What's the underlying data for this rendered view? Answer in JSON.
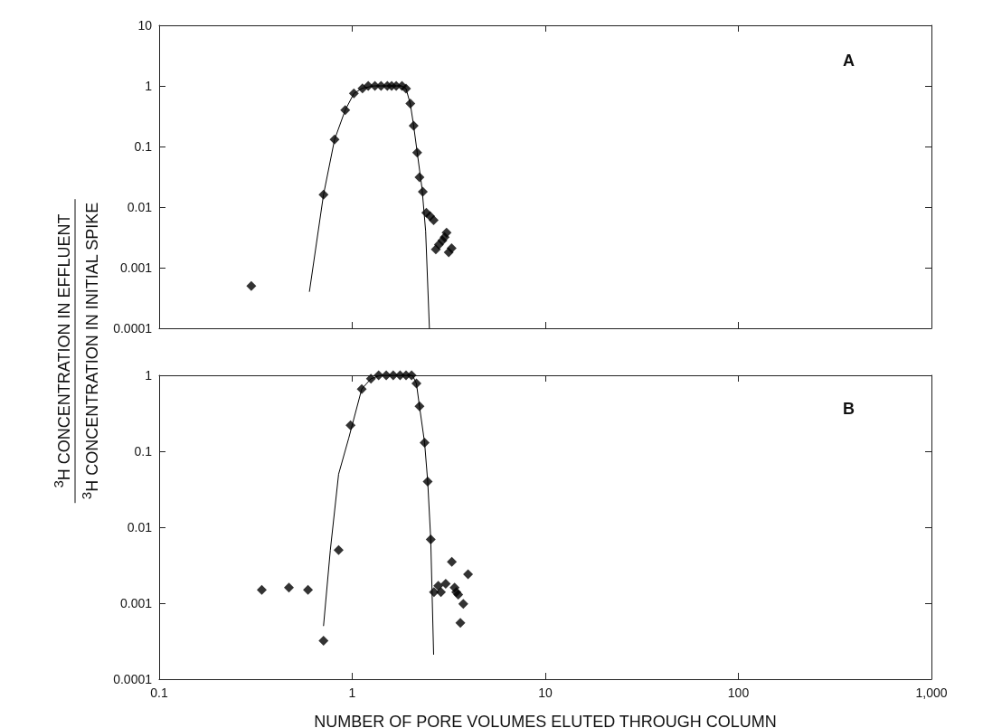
{
  "chart_data": [
    {
      "type": "scatter",
      "ylabel": "$^{3}$H CONCENTRATION IN EFFLUENT\n$^{3}$H CONCENTRATION IN INITIAL SPIKE",
      "annotations": [
        "A"
      ],
      "log": "xy",
      "grid": false,
      "tick_labels": "y",
      "xlim": [
        0.1,
        1000
      ],
      "xticks": [
        0.1,
        1,
        10,
        100,
        1000
      ],
      "ylim": [
        0.0001,
        10
      ],
      "yticks": [
        0.0001,
        0.001,
        0.01,
        0.1,
        1,
        10
      ],
      "series": [
        {
          "marker": "diamond",
          "color": "#000000",
          "x": [
            0.3,
            0.71,
            0.81,
            0.92,
            1.02,
            1.13,
            1.21,
            1.31,
            1.41,
            1.52,
            1.6,
            1.69,
            1.81,
            1.9,
            2.0,
            2.08,
            2.17,
            2.23,
            2.32,
            2.42,
            2.53,
            2.64,
            2.71,
            2.81,
            2.93,
            3.01,
            3.08,
            3.16,
            3.27
          ],
          "values": [
            0.0005,
            0.016,
            0.13,
            0.4,
            0.75,
            0.91,
            1.0,
            1.0,
            1.0,
            1.0,
            1.0,
            1.0,
            1.0,
            0.9,
            0.51,
            0.22,
            0.079,
            0.031,
            0.018,
            0.0081,
            0.0071,
            0.0061,
            0.002,
            0.0024,
            0.0028,
            0.0032,
            0.0038,
            0.0018,
            0.0021
          ]
        },
        {
          "type": "line",
          "marker": "none",
          "color": "#000000",
          "x": [
            0.6,
            0.71,
            0.81,
            0.92,
            1.02,
            1.13,
            1.3,
            1.8,
            1.9,
            2.0,
            2.08,
            2.17,
            2.3,
            2.4,
            2.51
          ],
          "values": [
            0.0004,
            0.016,
            0.13,
            0.4,
            0.75,
            0.92,
            1.0,
            1.0,
            0.9,
            0.5,
            0.22,
            0.08,
            0.02,
            0.004,
            0.0001
          ]
        }
      ]
    },
    {
      "type": "scatter",
      "xlabel": "NUMBER OF PORE VOLUMES ELUTED THROUGH COLUMN",
      "annotations": [
        "B"
      ],
      "log": "xy",
      "grid": false,
      "xlim": [
        0.1,
        1000
      ],
      "xticks": [
        0.1,
        1,
        10,
        100,
        {
          "value": 1000,
          "label": "1,000"
        }
      ],
      "ylim": [
        0.0001,
        1
      ],
      "yticks": [
        0.0001,
        0.001,
        0.01,
        0.1,
        1
      ],
      "series": [
        {
          "marker": "diamond",
          "color": "#000000",
          "x": [
            0.34,
            0.47,
            0.59,
            0.71,
            0.85,
            0.98,
            1.12,
            1.25,
            1.37,
            1.5,
            1.63,
            1.77,
            1.9,
            2.03,
            2.15,
            2.23,
            2.37,
            2.46,
            2.55,
            2.65,
            2.79,
            2.88,
            3.05,
            3.28,
            3.39,
            3.46,
            3.54,
            3.63,
            3.76,
            3.98
          ],
          "values": [
            0.0015,
            0.0016,
            0.0015,
            0.00032,
            0.005,
            0.22,
            0.66,
            0.9,
            1.0,
            1.0,
            1.0,
            1.0,
            1.0,
            1.0,
            0.78,
            0.39,
            0.13,
            0.04,
            0.0069,
            0.0014,
            0.0017,
            0.0014,
            0.0018,
            0.0035,
            0.0016,
            0.0014,
            0.0013,
            0.00055,
            0.00098,
            0.0024
          ]
        },
        {
          "type": "line",
          "marker": "none",
          "color": "#000000",
          "x": [
            0.71,
            0.77,
            0.85,
            0.96,
            1.12,
            1.25,
            1.4,
            2.05,
            2.15,
            2.23,
            2.37,
            2.46,
            2.55,
            2.64
          ],
          "values": [
            0.0005,
            0.005,
            0.05,
            0.15,
            0.66,
            0.9,
            1.0,
            1.0,
            0.78,
            0.39,
            0.13,
            0.04,
            0.007,
            0.00021
          ]
        }
      ]
    }
  ]
}
